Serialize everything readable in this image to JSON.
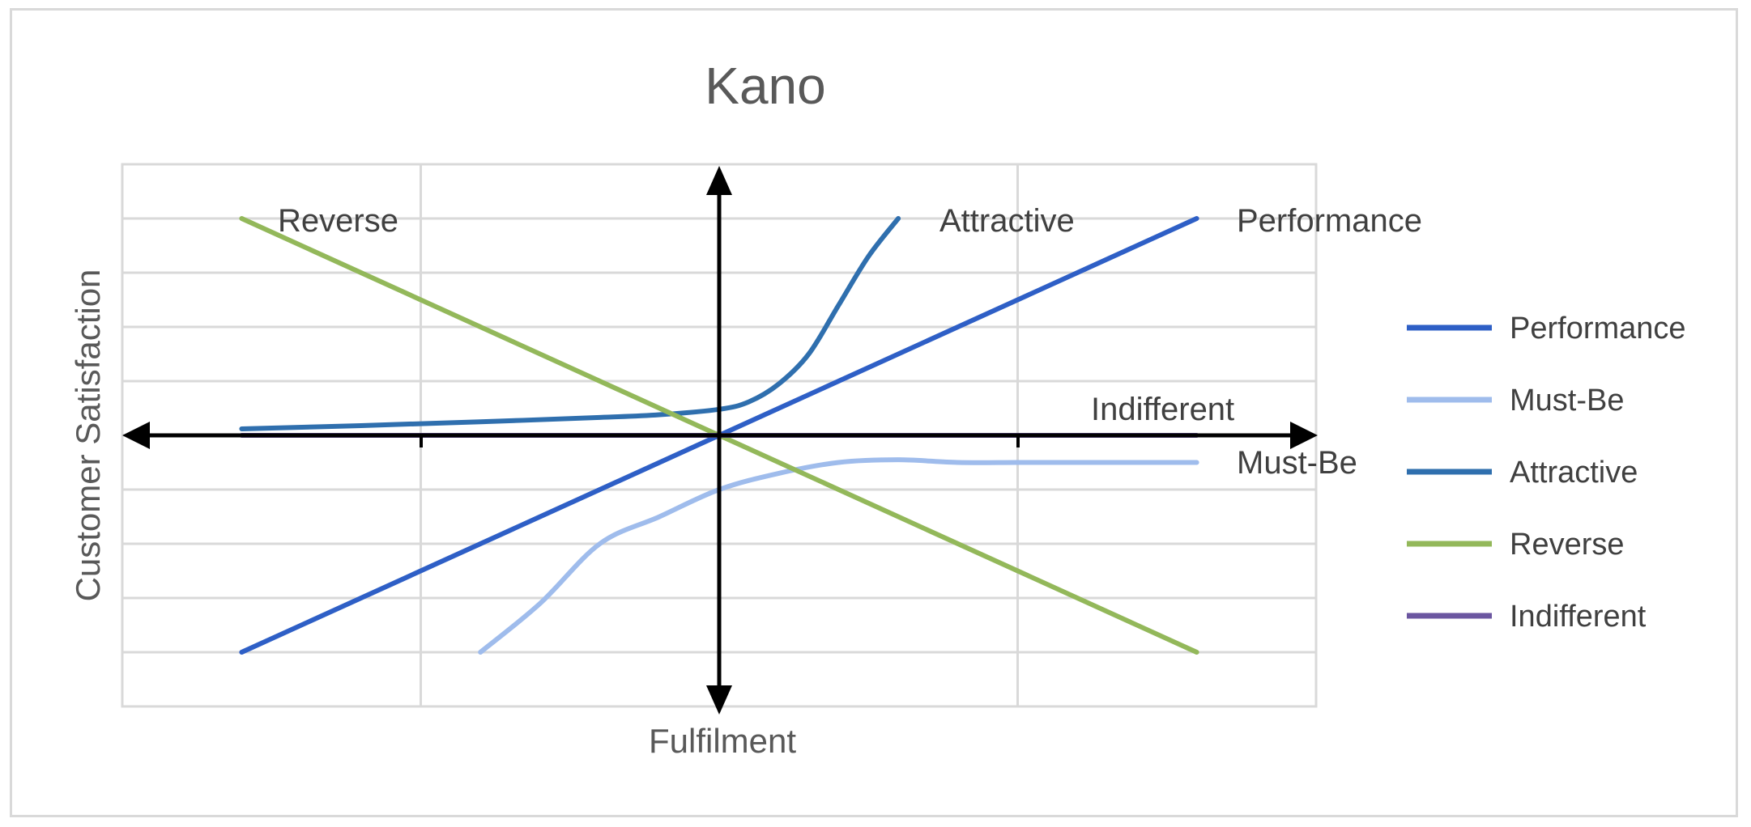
{
  "chart_data": {
    "type": "line",
    "title": "Kano",
    "xlabel": "Fulfilment",
    "ylabel": "Customer Satisfaction",
    "xlim": [
      -10,
      10
    ],
    "ylim": [
      -5,
      5
    ],
    "grid": true,
    "legend_position": "right",
    "series": [
      {
        "name": "Performance",
        "color": "#2e5fc6",
        "x": [
          -8,
          8
        ],
        "y": [
          -4,
          4
        ]
      },
      {
        "name": "Must-Be",
        "color": "#9fbcec",
        "x": [
          -4,
          -3,
          -2,
          -1,
          0,
          1,
          2,
          3,
          4,
          5,
          6,
          7,
          8
        ],
        "y": [
          -4,
          -3.1,
          -2,
          -1.5,
          -1,
          -0.7,
          -0.5,
          -0.45,
          -0.5,
          -0.5,
          -0.5,
          -0.5,
          -0.5
        ]
      },
      {
        "name": "Attractive",
        "color": "#2f6fae",
        "x": [
          -8,
          -6,
          -4,
          -2,
          -1,
          0,
          0.5,
          1,
          1.5,
          2,
          2.5,
          3
        ],
        "y": [
          0.12,
          0.18,
          0.25,
          0.33,
          0.38,
          0.48,
          0.62,
          0.95,
          1.5,
          2.4,
          3.3,
          4
        ]
      },
      {
        "name": "Reverse",
        "color": "#93b85a",
        "x": [
          -8,
          8
        ],
        "y": [
          4,
          -4
        ]
      },
      {
        "name": "Indifferent",
        "color": "#6b56a0",
        "x": [
          -8,
          8
        ],
        "y": [
          0,
          0
        ]
      }
    ],
    "annotations": [
      "Reverse",
      "Attractive",
      "Performance",
      "Indifferent",
      "Must-Be"
    ]
  }
}
